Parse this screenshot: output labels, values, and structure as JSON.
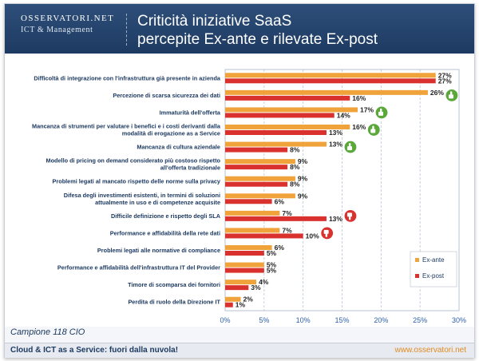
{
  "header": {
    "logo_main": "OSSERVATORI.NET",
    "logo_sub": "ICT & Management",
    "title_line1": "Criticità iniziative SaaS",
    "title_line2": "percepite Ex-ante e rilevate Ex-post"
  },
  "footer": {
    "sample": "Campione 118 CIO",
    "title": "Cloud & ICT as a Service: fuori dalla nuvola!",
    "url": "www.osservatori.net"
  },
  "colors": {
    "ex_ante": "#f0a33a",
    "ex_post": "#d9322e",
    "thumb_up": "#5aa83a",
    "thumb_down": "#d9322e"
  },
  "chart_data": {
    "type": "bar",
    "orientation": "horizontal",
    "categories": [
      "Difficoltà di integrazione con l'infrastruttura già presente in azienda",
      "Percezione di scarsa sicurezza dei dati",
      "Immaturità dell'offerta",
      "Mancanza di strumenti per valutare i benefici e i costi derivanti dalla modalità di erogazione as a Service",
      "Mancanza di cultura aziendale",
      "Modello di pricing on demand considerato più costoso rispetto all'offerta tradizionale",
      "Problemi legati al mancato rispetto delle norme sulla privacy",
      "Difesa degli investimenti esistenti, in termini di soluzioni attualmente in uso e di competenze acquisite",
      "Difficile definizione e rispetto degli SLA",
      "Performance e affidabilità della rete dati",
      "Problemi legati alle normative di compliance",
      "Performance e affidabilità dell'infrastruttura IT del Provider",
      "Timore di scomparsa dei fornitori",
      "Perdita di ruolo della Direzione IT"
    ],
    "category_lines": [
      [
        "Difficoltà di integrazione con l'infrastruttura già presente in azienda"
      ],
      [
        "Percezione di scarsa sicurezza dei dati"
      ],
      [
        "Immaturità dell'offerta"
      ],
      [
        "Mancanza di strumenti per valutare i benefici e i costi derivanti dalla",
        "modalità di erogazione as a Service"
      ],
      [
        "Mancanza di cultura aziendale"
      ],
      [
        "Modello di pricing on demand considerato più costoso rispetto",
        "all'offerta tradizionale"
      ],
      [
        "Problemi legati al mancato rispetto delle norme sulla privacy"
      ],
      [
        "Difesa degli investimenti esistenti, in termini di soluzioni",
        "attualmente in uso e di competenze acquisite"
      ],
      [
        "Difficile definizione e rispetto degli SLA"
      ],
      [
        "Performance e affidabilità della rete dati"
      ],
      [
        "Problemi legati alle normative di compliance"
      ],
      [
        "Performance e affidabilità dell'infrastruttura IT del Provider"
      ],
      [
        "Timore di scomparsa dei fornitori"
      ],
      [
        "Perdita di ruolo della Direzione IT"
      ]
    ],
    "series": [
      {
        "name": "Ex-ante",
        "values": [
          27,
          26,
          17,
          16,
          13,
          9,
          9,
          9,
          7,
          7,
          6,
          5,
          4,
          2
        ],
        "labels": [
          "27%",
          "26%",
          "17%",
          "16%",
          "13%",
          "9%",
          "9%",
          "9%",
          "7%",
          "7%",
          "6%",
          "5%",
          "4%",
          "2%"
        ]
      },
      {
        "name": "Ex-post",
        "values": [
          27,
          16,
          14,
          13,
          8,
          8,
          8,
          6,
          13,
          10,
          5,
          5,
          3,
          1
        ],
        "labels": [
          "27%",
          "16%",
          "14%",
          "13%",
          "8%",
          "8%",
          "8%",
          "6%",
          "13%",
          "10%",
          "5%",
          "5%",
          "3%",
          "1%"
        ]
      }
    ],
    "markers": [
      "",
      "thumb-up",
      "thumb-up",
      "thumb-up",
      "thumb-up",
      "",
      "",
      "",
      "thumb-down",
      "thumb-down",
      "",
      "",
      "",
      ""
    ],
    "xlim": [
      0,
      30
    ],
    "x_ticks": [
      0,
      5,
      10,
      15,
      20,
      25,
      30
    ],
    "x_tick_labels": [
      "0%",
      "5%",
      "10%",
      "15%",
      "20%",
      "25%",
      "30%"
    ],
    "grid": true,
    "legend_position": "right"
  }
}
